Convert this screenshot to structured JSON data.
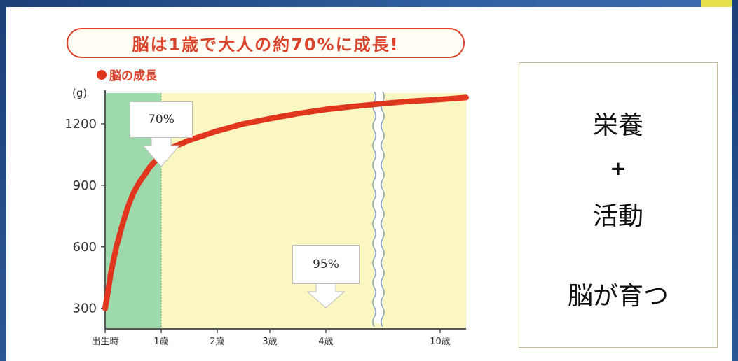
{
  "heading": "脳は1歳で大人の約70%に成長!",
  "chart_data": {
    "type": "line",
    "legend": "脳の成長",
    "ylabel": "(g)",
    "ylim": [
      200,
      1350
    ],
    "yticks": [
      300,
      600,
      900,
      1200
    ],
    "categories": [
      "出生時",
      "1歳",
      "2歳",
      "3歳",
      "4歳",
      "10歳"
    ],
    "series": [
      {
        "name": "脳の成長",
        "color": "#e1361e",
        "points": [
          [
            0,
            300
          ],
          [
            0.05,
            380
          ],
          [
            0.1,
            470
          ],
          [
            0.2,
            600
          ],
          [
            0.3,
            700
          ],
          [
            0.4,
            790
          ],
          [
            0.5,
            860
          ],
          [
            0.6,
            910
          ],
          [
            0.7,
            950
          ],
          [
            0.8,
            990
          ],
          [
            0.9,
            1020
          ],
          [
            1.0,
            1050
          ],
          [
            1.2,
            1085
          ],
          [
            1.5,
            1120
          ],
          [
            2.0,
            1165
          ],
          [
            2.5,
            1200
          ],
          [
            3.0,
            1225
          ],
          [
            3.5,
            1250
          ],
          [
            4.0,
            1270
          ],
          [
            4.4,
            1285
          ],
          [
            4.8,
            1298
          ],
          [
            5.2,
            1310
          ],
          [
            5.6,
            1318
          ],
          [
            6.0,
            1328
          ]
        ]
      }
    ],
    "annotations": [
      {
        "text": "70%",
        "x": 1
      },
      {
        "text": "95%",
        "x": 4
      }
    ],
    "highlight": {
      "from": "出生時",
      "to": "1歳",
      "color": "#7fcfa3"
    },
    "background_color": "#fbf7c3",
    "grid": false
  },
  "panel": {
    "line1": "栄養",
    "line2": "+",
    "line3": "活動",
    "line4": "脳が育つ"
  }
}
